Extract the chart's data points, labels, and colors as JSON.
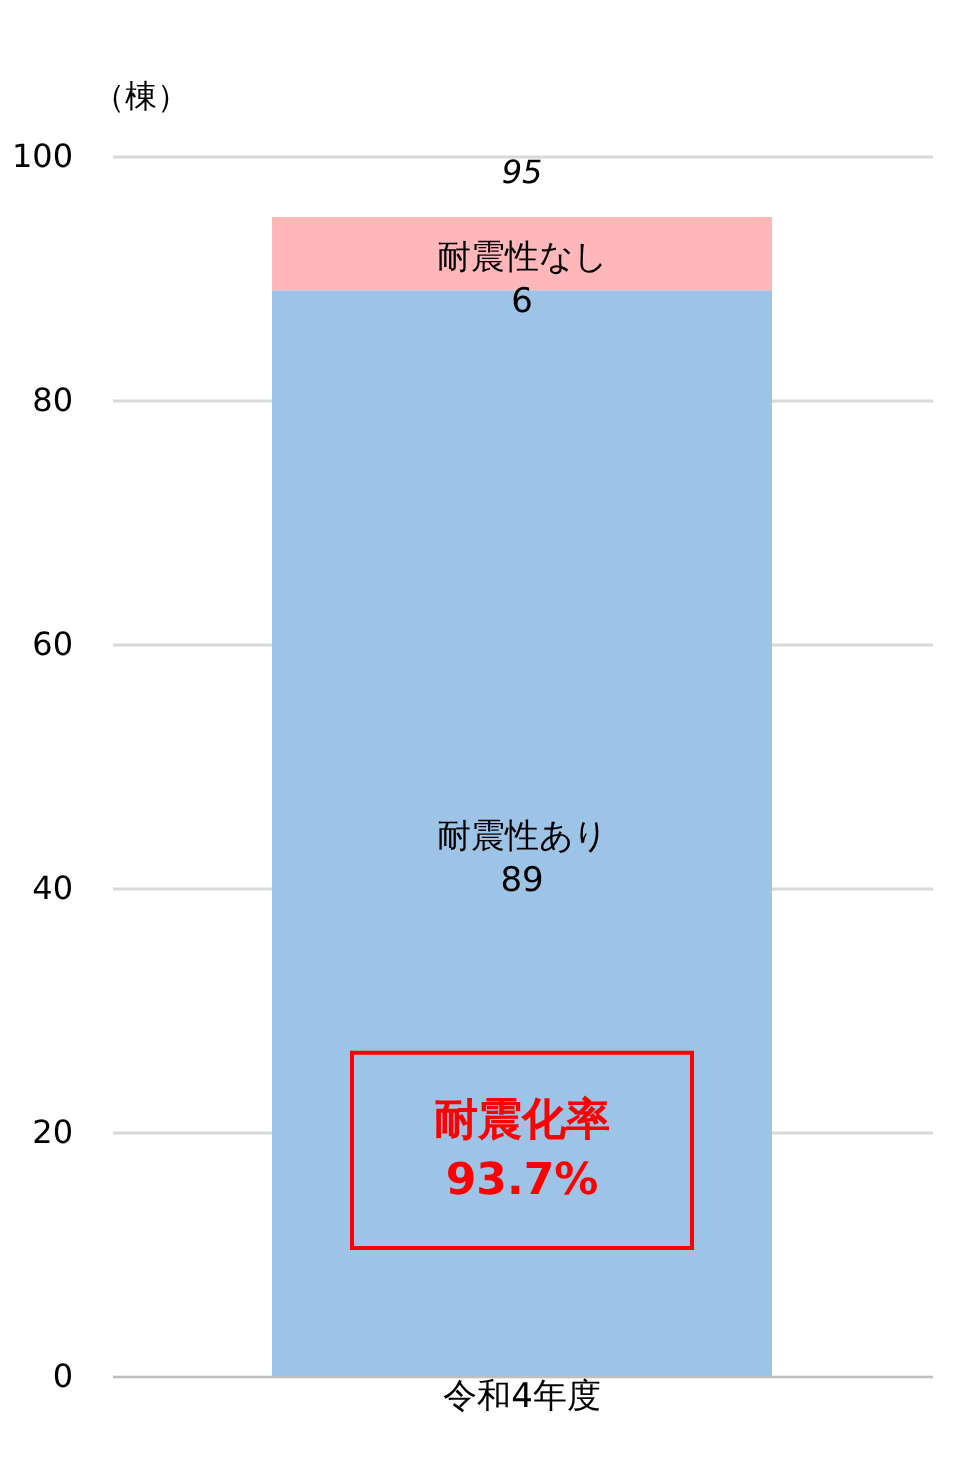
{
  "chart_data": {
    "type": "bar",
    "stacked": true,
    "ylabel": "（棟）",
    "categories": [
      "令和4年度"
    ],
    "series": [
      {
        "name": "耐震性あり",
        "color": "#9dc3e6",
        "values": [
          89
        ]
      },
      {
        "name": "耐震性なし",
        "color": "#ffb7ba",
        "values": [
          6
        ]
      }
    ],
    "data_labels": true,
    "totals": [
      "95"
    ],
    "ylim": [
      0,
      100
    ],
    "yticks": [
      0,
      20,
      40,
      60,
      80,
      100
    ],
    "grid": "y",
    "annotations": [
      "耐震化率\n93.7%"
    ]
  }
}
